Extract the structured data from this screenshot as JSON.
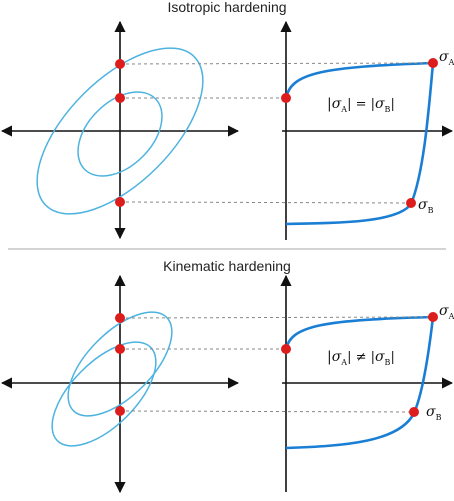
{
  "panels": [
    {
      "title": "Isotropic hardening",
      "point_a_label": {
        "symbol": "σ",
        "subscript": "A"
      },
      "point_b_label": {
        "symbol": "σ",
        "subscript": "B"
      },
      "relation": {
        "left": "|σ",
        "left_sub": "A",
        "operator": "| = |",
        "right": "σ",
        "right_sub": "B",
        "close": "|"
      }
    },
    {
      "title": "Kinematic hardening",
      "point_a_label": {
        "symbol": "σ",
        "subscript": "A"
      },
      "point_b_label": {
        "symbol": "σ",
        "subscript": "B"
      },
      "relation": {
        "left": "|σ",
        "left_sub": "A",
        "operator": "| ≠ |",
        "right": "σ",
        "right_sub": "B",
        "close": "|"
      }
    }
  ],
  "colors": {
    "yield_surface": "#4db3e0",
    "stress_strain_curve": "#1a7fd4",
    "points": "#dd1c1c",
    "axes": "#111111",
    "projection_lines": "#888888",
    "divider": "#aaaaaa"
  }
}
